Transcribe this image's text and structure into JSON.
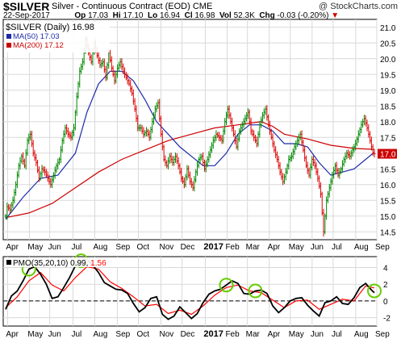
{
  "header": {
    "ticker": "$SILVER",
    "description": "Silver - Continuous Contract (EOD)",
    "exchange": "CME",
    "copyright": "@ StockCharts.com",
    "date": "22-Sep-2017",
    "open_label": "Op",
    "open": "17.03",
    "high_label": "Hi",
    "high": "17.10",
    "low_label": "Lo",
    "low": "16.94",
    "close_label": "Cl",
    "close": "16.98",
    "volume_label": "Vol",
    "volume": "52.3K",
    "change_label": "Chg",
    "change": "-0.03 (-0.20%)",
    "change_icon": "down-triangle-icon"
  },
  "colors": {
    "up_bar": "#008800",
    "down_bar": "#dd0000",
    "ma50": "#1c2ba8",
    "ma200": "#cc0000",
    "pmo": "#000000",
    "pmo_signal": "#ff0000",
    "highlight_circle": "#66cc00",
    "price_tag": "#cc0000",
    "grid": "#d9d9d9"
  },
  "chart_data": [
    {
      "type": "candlestick",
      "title": "$SILVER (Daily) 16.98",
      "legend": [
        {
          "name": "MA(50) 17.03",
          "color": "#1c2ba8"
        },
        {
          "name": "MA(200) 17.12",
          "color": "#cc0000"
        }
      ],
      "legend_position": "top-left",
      "last_price": 16.98,
      "last_price_label": "17.0",
      "y_ticks": [
        "14.5",
        "15.0",
        "15.5",
        "16.0",
        "16.5",
        "17.0",
        "17.5",
        "18.0",
        "18.5",
        "19.0",
        "19.5",
        "20.0",
        "20.5",
        "21.0"
      ],
      "ylim": [
        14.25,
        21.25
      ],
      "x_ticks": [
        "Apr",
        "May",
        "Jun",
        "Jul",
        "Aug",
        "Sep",
        "Oct",
        "Nov",
        "Dec",
        "2017",
        "Feb",
        "Mar",
        "Apr",
        "May",
        "Jun",
        "Jul",
        "Aug",
        "Sep"
      ],
      "grid": true,
      "price_path": [
        [
          0,
          15.0
        ],
        [
          1,
          15.3
        ],
        [
          3,
          15.2
        ],
        [
          5,
          15.5
        ],
        [
          7,
          16.0
        ],
        [
          9,
          16.6
        ],
        [
          11,
          16.9
        ],
        [
          13,
          16.6
        ],
        [
          15,
          17.4
        ],
        [
          17,
          17.6
        ],
        [
          19,
          17.0
        ],
        [
          21,
          16.7
        ],
        [
          23,
          16.2
        ],
        [
          25,
          16.5
        ],
        [
          27,
          16.4
        ],
        [
          29,
          16.2
        ],
        [
          31,
          16.0
        ],
        [
          33,
          16.3
        ],
        [
          35,
          16.6
        ],
        [
          37,
          16.8
        ],
        [
          39,
          17.4
        ],
        [
          41,
          17.8
        ],
        [
          43,
          17.6
        ],
        [
          45,
          17.5
        ],
        [
          47,
          17.8
        ],
        [
          49,
          18.8
        ],
        [
          51,
          19.6
        ],
        [
          53,
          19.9
        ],
        [
          55,
          20.6
        ],
        [
          57,
          20.2
        ],
        [
          59,
          19.9
        ],
        [
          61,
          20.5
        ],
        [
          63,
          20.1
        ],
        [
          65,
          19.8
        ],
        [
          67,
          19.9
        ],
        [
          69,
          19.4
        ],
        [
          71,
          20.2
        ],
        [
          73,
          19.7
        ],
        [
          75,
          19.3
        ],
        [
          77,
          19.7
        ],
        [
          79,
          19.9
        ],
        [
          81,
          19.6
        ],
        [
          83,
          19.4
        ],
        [
          85,
          19.2
        ],
        [
          87,
          18.9
        ],
        [
          89,
          18.4
        ],
        [
          91,
          17.8
        ],
        [
          93,
          17.8
        ],
        [
          95,
          17.6
        ],
        [
          97,
          17.7
        ],
        [
          99,
          17.5
        ],
        [
          101,
          18.0
        ],
        [
          103,
          18.4
        ],
        [
          105,
          18.6
        ],
        [
          107,
          17.6
        ],
        [
          109,
          16.8
        ],
        [
          111,
          16.6
        ],
        [
          113,
          16.9
        ],
        [
          115,
          16.7
        ],
        [
          117,
          16.9
        ],
        [
          119,
          16.6
        ],
        [
          121,
          16.2
        ],
        [
          123,
          16.0
        ],
        [
          125,
          16.5
        ],
        [
          127,
          16.1
        ],
        [
          129,
          15.9
        ],
        [
          131,
          16.4
        ],
        [
          133,
          16.8
        ],
        [
          135,
          16.9
        ],
        [
          137,
          16.5
        ],
        [
          139,
          16.8
        ],
        [
          141,
          17.1
        ],
        [
          143,
          17.4
        ],
        [
          145,
          17.6
        ],
        [
          147,
          17.5
        ],
        [
          149,
          17.4
        ],
        [
          151,
          18.0
        ],
        [
          153,
          18.4
        ],
        [
          155,
          18.0
        ],
        [
          157,
          17.6
        ],
        [
          159,
          17.2
        ],
        [
          161,
          17.7
        ],
        [
          163,
          17.9
        ],
        [
          165,
          18.1
        ],
        [
          167,
          18.3
        ],
        [
          169,
          17.7
        ],
        [
          171,
          17.5
        ],
        [
          173,
          17.3
        ],
        [
          175,
          17.9
        ],
        [
          177,
          18.2
        ],
        [
          179,
          18.4
        ],
        [
          181,
          17.9
        ],
        [
          183,
          17.5
        ],
        [
          185,
          17.1
        ],
        [
          187,
          16.8
        ],
        [
          189,
          16.4
        ],
        [
          191,
          16.1
        ],
        [
          193,
          16.4
        ],
        [
          195,
          16.8
        ],
        [
          197,
          16.9
        ],
        [
          199,
          17.2
        ],
        [
          201,
          17.4
        ],
        [
          203,
          17.6
        ],
        [
          205,
          17.1
        ],
        [
          207,
          16.6
        ],
        [
          209,
          16.3
        ],
        [
          211,
          16.8
        ],
        [
          213,
          16.6
        ],
        [
          215,
          16.2
        ],
        [
          217,
          15.7
        ],
        [
          219,
          14.5
        ],
        [
          221,
          15.5
        ],
        [
          223,
          15.9
        ],
        [
          225,
          16.3
        ],
        [
          227,
          16.6
        ],
        [
          229,
          16.3
        ],
        [
          231,
          16.5
        ],
        [
          233,
          16.8
        ],
        [
          235,
          17.0
        ],
        [
          237,
          16.9
        ],
        [
          239,
          17.1
        ],
        [
          241,
          17.3
        ],
        [
          243,
          17.6
        ],
        [
          245,
          17.9
        ],
        [
          247,
          18.1
        ],
        [
          249,
          17.8
        ],
        [
          251,
          17.4
        ],
        [
          253,
          17.0
        ],
        [
          254,
          16.98
        ]
      ],
      "ma50_path": [
        [
          0,
          14.9
        ],
        [
          12,
          15.6
        ],
        [
          24,
          16.2
        ],
        [
          36,
          16.3
        ],
        [
          48,
          17.0
        ],
        [
          56,
          18.3
        ],
        [
          64,
          19.2
        ],
        [
          72,
          19.6
        ],
        [
          80,
          19.6
        ],
        [
          88,
          19.3
        ],
        [
          96,
          18.7
        ],
        [
          104,
          18.0
        ],
        [
          112,
          17.6
        ],
        [
          120,
          17.2
        ],
        [
          128,
          16.9
        ],
        [
          136,
          16.6
        ],
        [
          144,
          16.6
        ],
        [
          152,
          17.0
        ],
        [
          160,
          17.6
        ],
        [
          168,
          17.9
        ],
        [
          176,
          17.9
        ],
        [
          184,
          17.7
        ],
        [
          192,
          17.3
        ],
        [
          200,
          17.3
        ],
        [
          208,
          17.2
        ],
        [
          216,
          16.7
        ],
        [
          224,
          16.3
        ],
        [
          232,
          16.4
        ],
        [
          240,
          16.5
        ],
        [
          248,
          16.8
        ],
        [
          254,
          17.03
        ]
      ],
      "ma200_path": [
        [
          0,
          14.95
        ],
        [
          16,
          15.1
        ],
        [
          32,
          15.4
        ],
        [
          48,
          15.9
        ],
        [
          64,
          16.4
        ],
        [
          80,
          16.8
        ],
        [
          96,
          17.1
        ],
        [
          112,
          17.4
        ],
        [
          128,
          17.6
        ],
        [
          144,
          17.8
        ],
        [
          160,
          17.9
        ],
        [
          176,
          18.0
        ],
        [
          184,
          17.85
        ],
        [
          192,
          17.6
        ],
        [
          208,
          17.45
        ],
        [
          224,
          17.25
        ],
        [
          240,
          17.15
        ],
        [
          254,
          17.12
        ]
      ]
    },
    {
      "type": "line",
      "title": "PMO(35,20,10) 0.99, 1.56",
      "title_parts": [
        "PMO(35,20,10)",
        "0.99,",
        "1.56"
      ],
      "y_ticks": [
        "-2",
        "0",
        "2",
        "4"
      ],
      "ylim": [
        -3,
        5.3
      ],
      "x_ticks": [
        "Apr",
        "May",
        "Jun",
        "Jul",
        "Aug",
        "Sep",
        "Oct",
        "Nov",
        "Dec",
        "2017",
        "Feb",
        "Mar",
        "Apr",
        "May",
        "Jun",
        "Jul",
        "Aug",
        "Sep"
      ],
      "zero_line": true,
      "series": [
        {
          "name": "PMO(35,20,10)",
          "values": [
            [
              0,
              -1.0
            ],
            [
              4,
              0.6
            ],
            [
              8,
              1.2
            ],
            [
              12,
              2.4
            ],
            [
              16,
              3.8
            ],
            [
              20,
              4.1
            ],
            [
              24,
              3.2
            ],
            [
              28,
              2.0
            ],
            [
              32,
              0.3
            ],
            [
              36,
              0.5
            ],
            [
              40,
              1.6
            ],
            [
              44,
              2.8
            ],
            [
              48,
              4.2
            ],
            [
              52,
              4.8
            ],
            [
              56,
              5.0
            ],
            [
              60,
              4.3
            ],
            [
              64,
              3.4
            ],
            [
              68,
              2.2
            ],
            [
              72,
              1.8
            ],
            [
              76,
              1.4
            ],
            [
              80,
              1.3
            ],
            [
              84,
              0.9
            ],
            [
              88,
              -0.3
            ],
            [
              92,
              -1.3
            ],
            [
              96,
              -0.8
            ],
            [
              100,
              0.3
            ],
            [
              104,
              0.5
            ],
            [
              108,
              -1.6
            ],
            [
              112,
              -2.2
            ],
            [
              116,
              -1.8
            ],
            [
              120,
              -0.7
            ],
            [
              124,
              -1.4
            ],
            [
              128,
              -2.1
            ],
            [
              132,
              -1.5
            ],
            [
              136,
              -0.2
            ],
            [
              140,
              0.8
            ],
            [
              144,
              1.2
            ],
            [
              148,
              1.4
            ],
            [
              152,
              1.9
            ],
            [
              156,
              2.4
            ],
            [
              160,
              2.1
            ],
            [
              164,
              0.9
            ],
            [
              168,
              0.8
            ],
            [
              172,
              1.2
            ],
            [
              176,
              1.3
            ],
            [
              180,
              0.9
            ],
            [
              184,
              -0.6
            ],
            [
              188,
              -1.4
            ],
            [
              192,
              -0.8
            ],
            [
              196,
              0.0
            ],
            [
              200,
              0.3
            ],
            [
              204,
              0.4
            ],
            [
              208,
              -0.5
            ],
            [
              212,
              -1.2
            ],
            [
              216,
              -1.8
            ],
            [
              220,
              -0.2
            ],
            [
              224,
              0.0
            ],
            [
              228,
              0.5
            ],
            [
              232,
              -0.3
            ],
            [
              236,
              -0.4
            ],
            [
              240,
              0.4
            ],
            [
              244,
              1.6
            ],
            [
              248,
              2.1
            ],
            [
              252,
              1.3
            ],
            [
              254,
              0.99
            ]
          ]
        },
        {
          "name": "Signal",
          "values": [
            [
              0,
              -0.8
            ],
            [
              8,
              0.5
            ],
            [
              16,
              2.4
            ],
            [
              24,
              3.4
            ],
            [
              32,
              1.9
            ],
            [
              40,
              1.2
            ],
            [
              48,
              2.8
            ],
            [
              56,
              4.1
            ],
            [
              64,
              3.8
            ],
            [
              72,
              2.3
            ],
            [
              80,
              1.5
            ],
            [
              88,
              0.5
            ],
            [
              96,
              -0.6
            ],
            [
              104,
              -0.4
            ],
            [
              112,
              -1.5
            ],
            [
              120,
              -1.1
            ],
            [
              128,
              -1.6
            ],
            [
              136,
              -0.6
            ],
            [
              144,
              0.7
            ],
            [
              152,
              1.6
            ],
            [
              160,
              1.9
            ],
            [
              168,
              1.2
            ],
            [
              176,
              1.0
            ],
            [
              184,
              0.1
            ],
            [
              192,
              -0.8
            ],
            [
              200,
              0.0
            ],
            [
              208,
              0.1
            ],
            [
              216,
              -1.0
            ],
            [
              224,
              -0.4
            ],
            [
              232,
              0.2
            ],
            [
              240,
              0.0
            ],
            [
              248,
              1.8
            ],
            [
              254,
              1.56
            ]
          ]
        }
      ],
      "highlight_points": [
        [
          16,
          3.8
        ],
        [
          52,
          4.8
        ],
        [
          152,
          1.9
        ],
        [
          172,
          1.2
        ],
        [
          254,
          1.2
        ]
      ]
    }
  ]
}
